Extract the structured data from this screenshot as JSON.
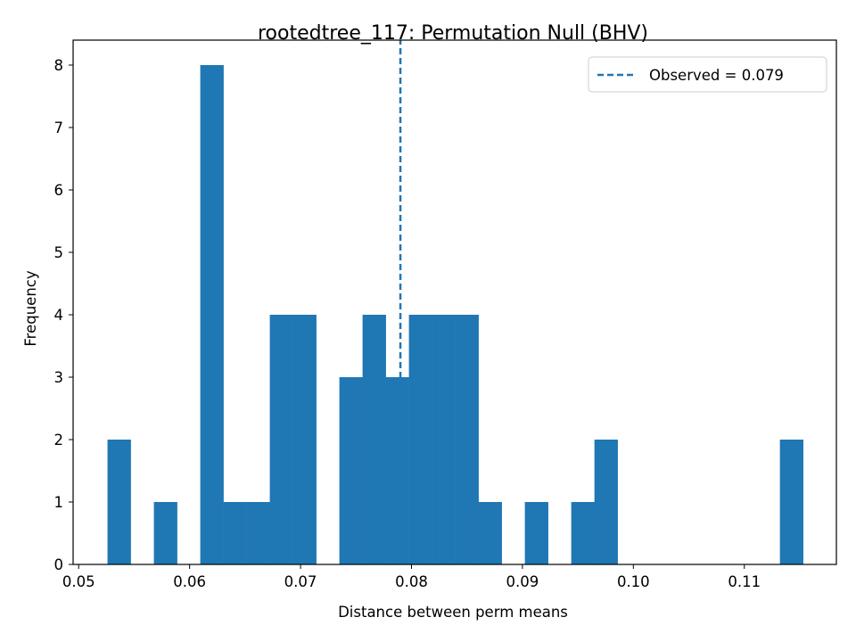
{
  "chart_data": {
    "type": "bar",
    "title": "rootedtree_117: Permutation Null (BHV)",
    "xlabel": "Distance between perm means",
    "ylabel": "Frequency",
    "xlim": [
      0.0495,
      0.1183
    ],
    "ylim": [
      0,
      8.4
    ],
    "x_ticks": [
      0.05,
      0.06,
      0.07,
      0.08,
      0.09,
      0.1,
      0.11
    ],
    "x_tick_labels": [
      "0.05",
      "0.06",
      "0.07",
      "0.08",
      "0.09",
      "0.10",
      "0.11"
    ],
    "y_ticks": [
      0,
      1,
      2,
      3,
      4,
      5,
      6,
      7,
      8
    ],
    "y_tick_labels": [
      "0",
      "1",
      "2",
      "3",
      "4",
      "5",
      "6",
      "7",
      "8"
    ],
    "bar_color": "#1f77b4",
    "bin_edges": [
      0.0526,
      0.05469,
      0.05678,
      0.05887,
      0.06096,
      0.06305,
      0.06514,
      0.06723,
      0.06932,
      0.07141,
      0.0735,
      0.07559,
      0.07768,
      0.07977,
      0.08186,
      0.08395,
      0.08604,
      0.08813,
      0.09022,
      0.09231,
      0.0944,
      0.09649,
      0.09858,
      0.10067,
      0.10276,
      0.10485,
      0.10694,
      0.10903,
      0.11112,
      0.11321,
      0.1153
    ],
    "counts": [
      2,
      0,
      1,
      0,
      8,
      1,
      1,
      4,
      4,
      0,
      3,
      4,
      3,
      4,
      4,
      4,
      1,
      0,
      1,
      0,
      1,
      2,
      0,
      0,
      0,
      0,
      0,
      0,
      0,
      2
    ],
    "observed": {
      "value": 0.079,
      "label": "Observed = 0.079",
      "color": "#1f77b4",
      "style": "dashed"
    },
    "legend": {
      "placement": "top-right",
      "entries": [
        "Observed = 0.079"
      ]
    },
    "grid": false
  }
}
